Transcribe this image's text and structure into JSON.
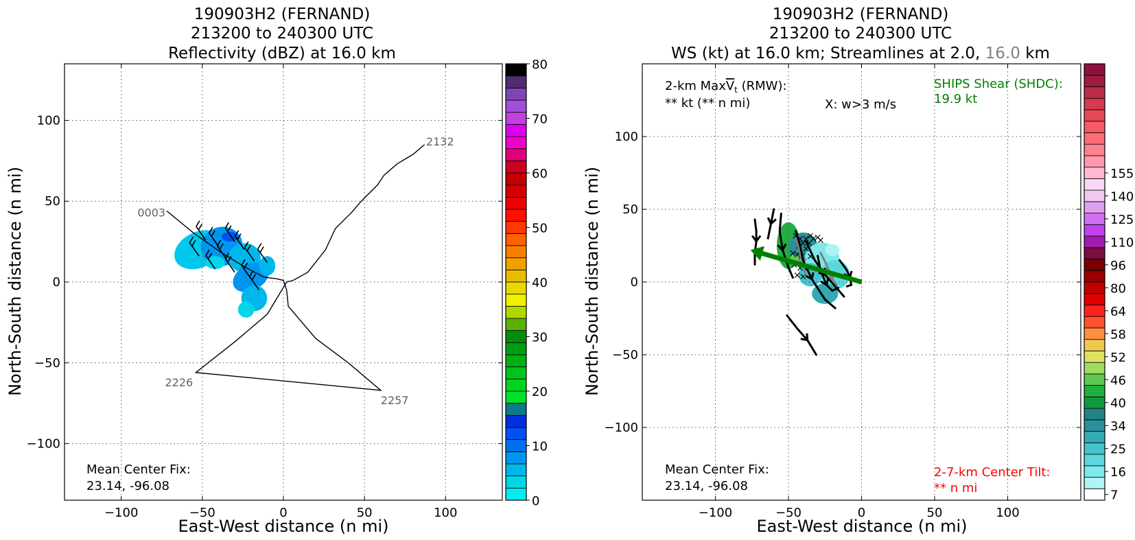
{
  "chart_data": [
    {
      "type": "heatmap",
      "title_lines": [
        "190903H2 (FERNAND)",
        "213200 to 240300 UTC",
        "Reflectivity (dBZ) at 16.0 km"
      ],
      "xlabel": "East-West distance (n mi)",
      "ylabel": "North-South distance (n mi)",
      "xlim": [
        -135,
        135
      ],
      "ylim": [
        -135,
        135
      ],
      "xticks": [
        -100,
        -50,
        0,
        50,
        100
      ],
      "yticks": [
        -100,
        -50,
        0,
        50,
        100
      ],
      "xtick_labels": [
        "−100",
        "−50",
        "0",
        "50",
        "100"
      ],
      "ytick_labels": [
        "−100",
        "−50",
        "0",
        "50",
        "100"
      ],
      "grid": true,
      "annotation": {
        "line1": "Mean Center Fix:",
        "line2": "23.14, -96.08"
      },
      "colorbar": {
        "min": 0,
        "max": 80,
        "step": 2.5,
        "ticks": [
          0,
          10,
          20,
          30,
          40,
          50,
          60,
          70,
          80
        ],
        "tick_labels": [
          "0",
          "10",
          "20",
          "30",
          "40",
          "50",
          "60",
          "70",
          "80"
        ],
        "colors": [
          "#00eded",
          "#00d5ea",
          "#00b7ec",
          "#0096ef",
          "#0070f2",
          "#0050f4",
          "#0030dc",
          "#0a7a8c",
          "#00e228",
          "#00d420",
          "#00c41a",
          "#00b014",
          "#009e10",
          "#008e0c",
          "#5cb000",
          "#b0d800",
          "#f0f000",
          "#ecd800",
          "#e8bc00",
          "#f0a000",
          "#f88000",
          "#ff6000",
          "#ff3800",
          "#ff1000",
          "#ee0000",
          "#d60000",
          "#c40000",
          "#cc0020",
          "#e0007a",
          "#f000c8",
          "#de00ee",
          "#c040e0",
          "#a050d8",
          "#8044b8",
          "#502c70",
          "#000000"
        ]
      },
      "flight_track": [
        [
          -72,
          44
        ],
        [
          -55,
          30
        ],
        [
          -38,
          18
        ],
        [
          -25,
          10
        ],
        [
          -12,
          3
        ],
        [
          -4,
          2
        ],
        [
          0,
          1
        ],
        [
          2,
          -5
        ],
        [
          3,
          -15
        ],
        [
          20,
          -35
        ],
        [
          40,
          -50
        ],
        [
          60,
          -67
        ],
        [
          -54,
          -56
        ],
        [
          -30,
          -37
        ],
        [
          -10,
          -20
        ],
        [
          2,
          0
        ],
        [
          6,
          1
        ],
        [
          15,
          6
        ],
        [
          26,
          20
        ],
        [
          32,
          33
        ],
        [
          42,
          43
        ],
        [
          48,
          50
        ],
        [
          58,
          60
        ],
        [
          62,
          66
        ],
        [
          70,
          73
        ],
        [
          80,
          79
        ],
        [
          87,
          85
        ]
      ],
      "track_labels": [
        {
          "text": "2132",
          "x": 88,
          "y": 87
        },
        {
          "text": "0003",
          "x": -90,
          "y": 43
        },
        {
          "text": "2226",
          "x": -73,
          "y": -62
        },
        {
          "text": "2257",
          "x": 60,
          "y": -73
        }
      ],
      "echo_patches": [
        {
          "x": -52,
          "y": 20,
          "rx": 16,
          "ry": 11,
          "color": "#00c8ec",
          "angle": -25
        },
        {
          "x": -38,
          "y": 22,
          "rx": 13,
          "ry": 12,
          "color": "#0096ef",
          "angle": -20
        },
        {
          "x": -33,
          "y": 28,
          "rx": 5,
          "ry": 3,
          "color": "#0050f4",
          "angle": 0
        },
        {
          "x": -24,
          "y": 15,
          "rx": 10,
          "ry": 9,
          "color": "#00b7ec",
          "angle": 0
        },
        {
          "x": -20,
          "y": 3,
          "rx": 12,
          "ry": 8,
          "color": "#0096ef",
          "angle": -30
        },
        {
          "x": -18,
          "y": -10,
          "rx": 8,
          "ry": 8,
          "color": "#00b7ec",
          "angle": 0
        },
        {
          "x": -23,
          "y": -17,
          "rx": 5,
          "ry": 5,
          "color": "#00d5ea",
          "angle": 0
        },
        {
          "x": -10,
          "y": 10,
          "rx": 5,
          "ry": 6,
          "color": "#00b7ec",
          "angle": 0
        },
        {
          "x": -42,
          "y": 12,
          "rx": 6,
          "ry": 4,
          "color": "#00d5ea",
          "angle": 0
        }
      ],
      "wind_barbs": [
        [
          -48,
          26
        ],
        [
          -40,
          22
        ],
        [
          -30,
          25
        ],
        [
          -52,
          16
        ],
        [
          -35,
          14
        ],
        [
          -24,
          20
        ],
        [
          -30,
          6
        ],
        [
          -20,
          2
        ],
        [
          -15,
          -5
        ],
        [
          -10,
          12
        ],
        [
          -42,
          8
        ],
        [
          -18,
          13
        ]
      ]
    },
    {
      "type": "heatmap",
      "title_lines": [
        "190903H2 (FERNAND)",
        "213200 to 240300 UTC",
        "WS (kt) at 16.0 km; Streamlines at 2.0, ",
        "16.0",
        " km"
      ],
      "xlabel": "East-West distance (n mi)",
      "ylabel": "North-South distance (n mi)",
      "xlim": [
        -150,
        150
      ],
      "ylim": [
        -150,
        150
      ],
      "xticks": [
        -100,
        -50,
        0,
        50,
        100
      ],
      "yticks": [
        -100,
        -50,
        0,
        50,
        100
      ],
      "xtick_labels": [
        "−100",
        "−50",
        "0",
        "50",
        "100"
      ],
      "ytick_labels": [
        "−100",
        "−50",
        "0",
        "50",
        "100"
      ],
      "grid": true,
      "annotations": {
        "rmw_line1_prefix": "2-km Max",
        "rmw_symbol": "V",
        "rmw_sub": "t",
        "rmw_suffix": " (RMW):",
        "rmw_line2": "** kt (** n mi)",
        "w_label": "X: w>3 m/s",
        "shear_line1": "SHIPS Shear (SHDC):",
        "shear_line2": "19.9 kt",
        "center_line1": "Mean Center Fix:",
        "center_line2": "23.14, -96.08",
        "tilt_line1": "2-7-km Center Tilt:",
        "tilt_line2": "** n mi"
      },
      "colors": {
        "shear": "#008000",
        "tilt": "#ff0000",
        "level_highlight": "#808080"
      },
      "shear_vector": {
        "from": [
          0,
          0
        ],
        "to": [
          -76,
          22
        ]
      },
      "colorbar": {
        "ticks": [
          7,
          16,
          25,
          34,
          40,
          46,
          52,
          58,
          64,
          80,
          96,
          110,
          125,
          140,
          155
        ],
        "tick_labels": [
          "7",
          "16",
          "25",
          "34",
          "40",
          "46",
          "52",
          "58",
          "64",
          "80",
          "96",
          "110",
          "125",
          "140",
          "155"
        ],
        "tick_bins": [
          0,
          2,
          4,
          6,
          8,
          10,
          12,
          14,
          16,
          18,
          20,
          22,
          24,
          26,
          28
        ],
        "colors": [
          "#ffffff",
          "#aef4f4",
          "#7ee8ec",
          "#5cd8dc",
          "#44c4cc",
          "#34aab4",
          "#2a909c",
          "#228284",
          "#109a40",
          "#20b040",
          "#60c850",
          "#a0dc60",
          "#e0e060",
          "#f0c850",
          "#ff9040",
          "#ff5030",
          "#ff2020",
          "#e00000",
          "#c00000",
          "#9a0000",
          "#7a0000",
          "#7a0e3e",
          "#a01cb0",
          "#c040f0",
          "#d070f0",
          "#e0a0f0",
          "#f0c8f0",
          "#f8d8f4",
          "#ffb8d0",
          "#ff98ac",
          "#ff8090",
          "#ff6c78",
          "#f85a64",
          "#e84858",
          "#d43a50",
          "#bc2c48",
          "#a01c40",
          "#901040"
        ]
      },
      "ws_patches": [
        {
          "x": -50,
          "y": 25,
          "rx": 8,
          "ry": 16,
          "color": "#20b040",
          "angle": 0
        },
        {
          "x": -40,
          "y": 24,
          "rx": 10,
          "ry": 10,
          "color": "#2a909c",
          "angle": 0
        },
        {
          "x": -27,
          "y": 15,
          "rx": 12,
          "ry": 12,
          "color": "#7ee8ec",
          "angle": 0
        },
        {
          "x": -18,
          "y": 5,
          "rx": 10,
          "ry": 10,
          "color": "#5cd8dc",
          "angle": 0
        },
        {
          "x": -25,
          "y": -8,
          "rx": 9,
          "ry": 7,
          "color": "#34aab4",
          "angle": 0
        },
        {
          "x": -35,
          "y": 5,
          "rx": 8,
          "ry": 8,
          "color": "#44c4cc",
          "angle": 0
        },
        {
          "x": -45,
          "y": 15,
          "rx": 4,
          "ry": 4,
          "color": "#60c850",
          "angle": 0
        },
        {
          "x": -20,
          "y": 22,
          "rx": 5,
          "ry": 4,
          "color": "#aef4f4",
          "angle": 0
        }
      ],
      "streamlines_black": [
        [
          [
            -73,
            43
          ],
          [
            -72,
            35
          ],
          [
            -72,
            28
          ],
          [
            -73,
            20
          ],
          [
            -73,
            12
          ]
        ],
        [
          [
            -60,
            50
          ],
          [
            -62,
            40
          ],
          [
            -64,
            30
          ]
        ],
        [
          [
            -55,
            47
          ],
          [
            -56,
            35
          ],
          [
            -54,
            22
          ],
          [
            -50,
            10
          ],
          [
            -47,
            3
          ]
        ],
        [
          [
            -45,
            35
          ],
          [
            -42,
            25
          ],
          [
            -40,
            15
          ],
          [
            -34,
            2
          ],
          [
            -25,
            -12
          ],
          [
            -18,
            -18
          ]
        ],
        [
          [
            -38,
            28
          ],
          [
            -32,
            15
          ],
          [
            -25,
            5
          ],
          [
            -18,
            -3
          ],
          [
            -12,
            -10
          ]
        ],
        [
          [
            -30,
            18
          ],
          [
            -28,
            8
          ],
          [
            -24,
            -2
          ],
          [
            -20,
            -6
          ],
          [
            -16,
            -4
          ]
        ],
        [
          [
            -15,
            15
          ],
          [
            -10,
            8
          ],
          [
            -8,
            3
          ],
          [
            -7,
            -2
          ],
          [
            -10,
            -3
          ]
        ],
        [
          [
            -51,
            -23
          ],
          [
            -44,
            -32
          ],
          [
            -37,
            -40
          ],
          [
            -31,
            -50
          ]
        ]
      ],
      "streamlines_gray": [
        [
          [
            -45,
            30
          ],
          [
            -42,
            20
          ],
          [
            -40,
            12
          ],
          [
            -38,
            4
          ]
        ],
        [
          [
            -28,
            20
          ],
          [
            -24,
            12
          ],
          [
            -20,
            2
          ],
          [
            -17,
            -2
          ]
        ]
      ],
      "w_marks": [
        [
          -45,
          32
        ],
        [
          -42,
          30
        ],
        [
          -38,
          30
        ],
        [
          -35,
          32
        ],
        [
          -33,
          30
        ],
        [
          -30,
          31
        ],
        [
          -28,
          29
        ],
        [
          -40,
          27
        ],
        [
          -36,
          27
        ],
        [
          -43,
          25
        ],
        [
          -38,
          23
        ],
        [
          -44,
          19
        ],
        [
          -47,
          20
        ],
        [
          -41,
          18
        ],
        [
          -35,
          18
        ],
        [
          -46,
          12
        ],
        [
          -42,
          10
        ],
        [
          -38,
          9
        ],
        [
          -44,
          5
        ],
        [
          -40,
          4
        ]
      ]
    }
  ]
}
